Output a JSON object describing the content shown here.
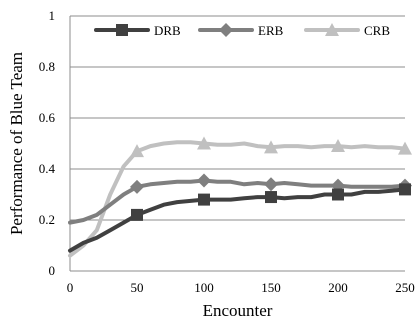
{
  "chart_data": {
    "type": "line",
    "xlabel": "Encounter",
    "ylabel": "Performance of Blue Team",
    "xlim": [
      0,
      250
    ],
    "ylim": [
      0,
      1
    ],
    "x_ticks": [
      0,
      50,
      100,
      150,
      200,
      250
    ],
    "y_ticks": [
      0,
      0.2,
      0.4,
      0.6,
      0.8,
      1
    ],
    "y_tick_labels": [
      "0",
      "0.2",
      "0.4",
      "0.6",
      "0.8",
      "1"
    ],
    "grid": "horizontal",
    "legend_position": "top",
    "series": [
      {
        "name": "DRB",
        "color": "#404040",
        "marker": "square",
        "marker_x": [
          50,
          100,
          150,
          200,
          250
        ],
        "x": [
          0,
          10,
          20,
          30,
          40,
          50,
          60,
          70,
          80,
          90,
          100,
          110,
          120,
          130,
          140,
          150,
          160,
          170,
          180,
          190,
          200,
          210,
          220,
          230,
          240,
          250
        ],
        "values": [
          0.08,
          0.11,
          0.13,
          0.16,
          0.19,
          0.22,
          0.24,
          0.26,
          0.27,
          0.275,
          0.28,
          0.28,
          0.28,
          0.285,
          0.29,
          0.29,
          0.285,
          0.29,
          0.29,
          0.3,
          0.3,
          0.3,
          0.31,
          0.31,
          0.315,
          0.32
        ]
      },
      {
        "name": "ERB",
        "color": "#7f7f7f",
        "marker": "diamond",
        "marker_x": [
          50,
          100,
          150,
          200,
          250
        ],
        "x": [
          0,
          10,
          20,
          30,
          40,
          50,
          60,
          70,
          80,
          90,
          100,
          110,
          120,
          130,
          140,
          150,
          160,
          170,
          180,
          190,
          200,
          210,
          220,
          230,
          240,
          250
        ],
        "values": [
          0.19,
          0.2,
          0.22,
          0.26,
          0.3,
          0.33,
          0.34,
          0.345,
          0.35,
          0.35,
          0.355,
          0.35,
          0.35,
          0.34,
          0.345,
          0.34,
          0.345,
          0.34,
          0.335,
          0.335,
          0.335,
          0.33,
          0.33,
          0.33,
          0.33,
          0.335
        ]
      },
      {
        "name": "CRB",
        "color": "#c0c0c0",
        "marker": "triangle",
        "marker_x": [
          50,
          100,
          150,
          200,
          250
        ],
        "x": [
          0,
          10,
          20,
          30,
          40,
          50,
          60,
          70,
          80,
          90,
          100,
          110,
          120,
          130,
          140,
          150,
          160,
          170,
          180,
          190,
          200,
          210,
          220,
          230,
          240,
          250
        ],
        "values": [
          0.06,
          0.1,
          0.16,
          0.3,
          0.41,
          0.47,
          0.49,
          0.5,
          0.505,
          0.505,
          0.5,
          0.495,
          0.495,
          0.5,
          0.49,
          0.485,
          0.49,
          0.49,
          0.485,
          0.49,
          0.49,
          0.485,
          0.49,
          0.485,
          0.485,
          0.48
        ]
      }
    ]
  }
}
